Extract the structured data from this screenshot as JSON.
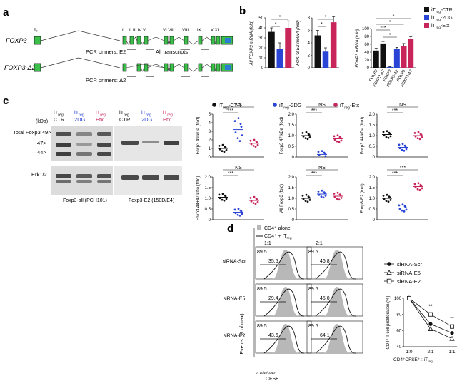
{
  "colors": {
    "ctr": "#111111",
    "dg": "#2a44d6",
    "etx": "#c8265a",
    "grey": "#b8b8b8",
    "exon": "#3cbf4a"
  },
  "panel_a": {
    "label": "a",
    "gene1": "FOXP3",
    "gene2": "FOXP3-Δ2",
    "exon_labels": [
      "I",
      "II III IV V",
      "VI VII",
      "VIII",
      "IX",
      "X XI"
    ],
    "promoter": "I₀",
    "primer_e2": "PCR primers: E2",
    "primer_d2": "PCR primers: Δ2",
    "all": "All transcripts"
  },
  "panel_b": {
    "label": "b",
    "legend": [
      {
        "main": "iT",
        "sub": "reg",
        "suffix": "-CTR",
        "color": "#111111"
      },
      {
        "main": "iT",
        "sub": "reg",
        "suffix": "-2DG",
        "color": "#2a44d6"
      },
      {
        "main": "iT",
        "sub": "reg",
        "suffix": "-Etx",
        "color": "#c8265a"
      }
    ],
    "charts": [
      {
        "ylabel": "All FOXP3 mRNA (fold)",
        "ticks": [
          "0",
          "10",
          "20",
          "30",
          "40",
          "50"
        ],
        "ymax": 50,
        "values": [
          36,
          19,
          40
        ],
        "errors": [
          4,
          6,
          7
        ],
        "sig": [
          "*",
          "*"
        ]
      },
      {
        "ylabel": "FOXP3-E2 mRNA (fold)",
        "ticks": [
          "0",
          "2",
          "4",
          "6",
          "8"
        ],
        "ymax": 8,
        "values": [
          5.2,
          2.6,
          7.3
        ],
        "errors": [
          0.8,
          0.6,
          0.9
        ],
        "sig": [
          "*",
          "*"
        ]
      },
      {
        "ylabel": "FOXP3 mRNA (fold)",
        "ticks": [
          "0",
          "20",
          "40",
          "60",
          "80",
          "100"
        ],
        "ymax": 100,
        "groups": [
          "FOXP3",
          "FOXP3-Δ2",
          "FOXP3",
          "FOXP3-Δ2",
          "FOXP3",
          "FOXP3-Δ2"
        ],
        "values": [
          44,
          62,
          2,
          48,
          56,
          74
        ],
        "errors": [
          6,
          5,
          1,
          4,
          6,
          5
        ],
        "sig": [
          "***",
          "*",
          "*",
          "*"
        ]
      }
    ]
  },
  "panel_c": {
    "label": "c",
    "kda": "(kDa)",
    "lane_headers": [
      {
        "main": "iT",
        "sub": "reg",
        "l2": "CTR",
        "color": "#111111"
      },
      {
        "main": "iT",
        "sub": "reg",
        "l2": "2DG",
        "color": "#2a44d6"
      },
      {
        "main": "iT",
        "sub": "reg",
        "l2": "Etx",
        "color": "#c8265a"
      },
      {
        "main": "iT",
        "sub": "reg",
        "l2": "CTR",
        "color": "#111111"
      },
      {
        "main": "iT",
        "sub": "reg",
        "l2": "2DG",
        "color": "#2a44d6"
      },
      {
        "main": "iT",
        "sub": "reg",
        "l2": "Etx",
        "color": "#c8265a"
      }
    ],
    "row_labels": [
      "Total Foxp3 49>",
      "47>",
      "44>",
      "Erk1/2"
    ],
    "blot_captions": [
      "Foxp3-all (PCH101)",
      "Foxp3-E2 (150D/E4)"
    ],
    "legend": [
      "iT",
      "reg",
      "-CTR",
      "iT",
      "reg",
      "-2DG",
      "iT",
      "reg",
      "-Etx"
    ],
    "scatter": [
      {
        "ylabel": "Foxp3 49 kDa (fold)",
        "ticks": [
          "0",
          "1",
          "2",
          "3",
          "4",
          "5"
        ],
        "ymax": 5,
        "medians": [
          1.0,
          3.2,
          1.6
        ],
        "sig": [
          "***",
          "NS"
        ]
      },
      {
        "ylabel": "Foxp3 47 kDa (fold)",
        "ticks": [
          "0",
          "0.5",
          "1.0",
          "1.5",
          "2.0"
        ],
        "ymax": 2,
        "medians": [
          1.0,
          0.12,
          0.85
        ],
        "sig": [
          "***",
          "NS"
        ]
      },
      {
        "ylabel": "Foxp3 44 kDa (fold)",
        "ticks": [
          "0",
          "0.5",
          "1.0",
          "1.5",
          "2.0"
        ],
        "ymax": 2,
        "medians": [
          1.05,
          0.45,
          1.0
        ],
        "sig": [
          "***",
          "NS"
        ]
      },
      {
        "ylabel": "Foxp3 44+47 kDa (fold)",
        "ticks": [
          "0",
          "0.5",
          "1.0",
          "1.5",
          "2.0"
        ],
        "ymax": 2,
        "medians": [
          1.05,
          0.35,
          0.9
        ],
        "sig": [
          "***",
          "NS"
        ]
      },
      {
        "ylabel": "All Foxp3 (fold)",
        "ticks": [
          "0",
          "0.5",
          "1.0",
          "1.5",
          "2.0"
        ],
        "ymax": 2,
        "medians": [
          1.0,
          1.2,
          1.1
        ],
        "sig": [
          "***",
          "NS"
        ]
      },
      {
        "ylabel": "Foxp3-E2 (fold)",
        "ticks": [
          "0",
          "0.5",
          "1.0",
          "1.5",
          "2.0"
        ],
        "ymax": 2,
        "medians": [
          1.0,
          0.55,
          1.55
        ],
        "sig": [
          "***",
          "***"
        ]
      }
    ]
  },
  "panel_d": {
    "label": "d",
    "legend_top": [
      "CD4⁺ alone",
      "CD4⁺ + iT",
      "reg"
    ],
    "ratios": [
      "1:1",
      "2:1"
    ],
    "rows": [
      "siRNA-Scr",
      "siRNA-E5",
      "siRNA-E2"
    ],
    "gates": [
      [
        "89.5",
        "35.5",
        "89.5",
        "46.8"
      ],
      [
        "89.5",
        "29.4",
        "89.5",
        "45.0"
      ],
      [
        "89.5",
        "43.6",
        "89.5",
        "64.1"
      ]
    ],
    "ylabel": "Events (% of max)",
    "xlabel": "CFSE",
    "xticks": [
      "0",
      "10²",
      "10³",
      "10⁴",
      "10⁵"
    ],
    "line": {
      "legend": [
        "siRNA-Scr",
        "siRNA-E5",
        "siRNA-E2"
      ],
      "ylabel": "CD4⁺ T cell proliferation (%)",
      "xlabel": "CD4⁺CFSE⁺ : iT",
      "xlabel_sub": "reg",
      "categories": [
        "1:0",
        "2:1",
        "1:1"
      ],
      "ticks": [
        "40",
        "60",
        "80",
        "100"
      ],
      "ymin": 40,
      "ymax": 100,
      "series": [
        {
          "name": "siRNA-Scr",
          "values": [
            100,
            68,
            57
          ],
          "marker": "filled-circle"
        },
        {
          "name": "siRNA-E5",
          "values": [
            100,
            62,
            50
          ],
          "marker": "triangle"
        },
        {
          "name": "siRNA-E2",
          "values": [
            100,
            80,
            65
          ],
          "marker": "open-square"
        }
      ],
      "sig": [
        "**",
        "**"
      ]
    }
  }
}
